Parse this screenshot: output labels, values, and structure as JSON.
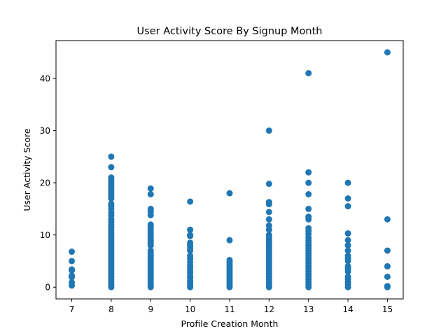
{
  "chart_data": {
    "type": "scatter",
    "title": "User Activity Score By Signup Month",
    "xlabel": "Profile Creation Month",
    "ylabel": "User Activity Score",
    "xlim": [
      6.6,
      15.4
    ],
    "ylim": [
      -2.25,
      47.25
    ],
    "xticks": [
      7,
      8,
      9,
      10,
      11,
      12,
      13,
      14,
      15
    ],
    "yticks": [
      0,
      10,
      20,
      30,
      40
    ],
    "grid": false,
    "marker_color": "#1f77b4",
    "series": [
      {
        "points": [
          [
            7,
            6.8
          ],
          [
            7,
            5.0
          ],
          [
            7,
            3.4
          ],
          [
            7,
            3.2
          ],
          [
            7,
            2.2
          ],
          [
            7,
            1.9
          ],
          [
            7,
            0.9
          ],
          [
            7,
            0.3
          ],
          [
            8,
            25.0
          ],
          [
            8,
            23.0
          ],
          [
            8,
            21.0
          ],
          [
            8,
            20.5
          ],
          [
            8,
            20.0
          ],
          [
            8,
            19.5
          ],
          [
            8,
            19.0
          ],
          [
            8,
            18.5
          ],
          [
            8,
            18.0
          ],
          [
            8,
            17.5
          ],
          [
            8,
            17.0
          ],
          [
            8,
            16.0
          ],
          [
            8,
            15.5
          ],
          [
            8,
            15.0
          ],
          [
            8,
            14.3
          ],
          [
            8,
            13.7
          ],
          [
            8,
            13.0
          ],
          [
            8,
            12.5
          ],
          [
            8,
            12.0
          ],
          [
            8,
            11.5
          ],
          [
            8,
            11.0
          ],
          [
            8,
            10.5
          ],
          [
            8,
            10.0
          ],
          [
            8,
            9.5
          ],
          [
            8,
            9.0
          ],
          [
            8,
            8.5
          ],
          [
            8,
            8.0
          ],
          [
            8,
            7.5
          ],
          [
            8,
            7.0
          ],
          [
            8,
            6.5
          ],
          [
            8,
            6.0
          ],
          [
            8,
            5.5
          ],
          [
            8,
            5.0
          ],
          [
            8,
            4.5
          ],
          [
            8,
            4.0
          ],
          [
            8,
            3.5
          ],
          [
            8,
            3.0
          ],
          [
            8,
            2.5
          ],
          [
            8,
            2.0
          ],
          [
            8,
            1.5
          ],
          [
            8,
            1.0
          ],
          [
            8,
            0.5
          ],
          [
            8,
            0.0
          ],
          [
            9,
            18.9
          ],
          [
            9,
            17.8
          ],
          [
            9,
            15.0
          ],
          [
            9,
            14.5
          ],
          [
            9,
            13.8
          ],
          [
            9,
            12.0
          ],
          [
            9,
            11.5
          ],
          [
            9,
            11.0
          ],
          [
            9,
            10.5
          ],
          [
            9,
            10.0
          ],
          [
            9,
            9.5
          ],
          [
            9,
            9.0
          ],
          [
            9,
            8.5
          ],
          [
            9,
            8.0
          ],
          [
            9,
            7.0
          ],
          [
            9,
            6.5
          ],
          [
            9,
            6.0
          ],
          [
            9,
            5.5
          ],
          [
            9,
            5.0
          ],
          [
            9,
            4.5
          ],
          [
            9,
            4.0
          ],
          [
            9,
            3.5
          ],
          [
            9,
            3.0
          ],
          [
            9,
            2.5
          ],
          [
            9,
            2.0
          ],
          [
            9,
            1.5
          ],
          [
            9,
            1.0
          ],
          [
            9,
            0.5
          ],
          [
            9,
            0.0
          ],
          [
            10,
            16.4
          ],
          [
            10,
            11.0
          ],
          [
            10,
            10.0
          ],
          [
            10,
            9.8
          ],
          [
            10,
            8.5
          ],
          [
            10,
            8.0
          ],
          [
            10,
            7.5
          ],
          [
            10,
            7.0
          ],
          [
            10,
            6.0
          ],
          [
            10,
            5.5
          ],
          [
            10,
            4.8
          ],
          [
            10,
            4.2
          ],
          [
            10,
            3.8
          ],
          [
            10,
            3.2
          ],
          [
            10,
            2.8
          ],
          [
            10,
            2.2
          ],
          [
            10,
            1.8
          ],
          [
            10,
            1.2
          ],
          [
            10,
            0.8
          ],
          [
            10,
            0.3
          ],
          [
            10,
            0.0
          ],
          [
            11,
            18.0
          ],
          [
            11,
            9.0
          ],
          [
            11,
            5.2
          ],
          [
            11,
            4.8
          ],
          [
            11,
            4.4
          ],
          [
            11,
            4.0
          ],
          [
            11,
            3.6
          ],
          [
            11,
            3.2
          ],
          [
            11,
            2.8
          ],
          [
            11,
            2.4
          ],
          [
            11,
            2.0
          ],
          [
            11,
            1.6
          ],
          [
            11,
            1.2
          ],
          [
            11,
            0.8
          ],
          [
            11,
            0.4
          ],
          [
            11,
            0.0
          ],
          [
            12,
            30.0
          ],
          [
            12,
            19.8
          ],
          [
            12,
            16.3
          ],
          [
            12,
            15.9
          ],
          [
            12,
            14.4
          ],
          [
            12,
            13.0
          ],
          [
            12,
            11.8
          ],
          [
            12,
            11.0
          ],
          [
            12,
            10.0
          ],
          [
            12,
            9.5
          ],
          [
            12,
            9.0
          ],
          [
            12,
            8.5
          ],
          [
            12,
            8.0
          ],
          [
            12,
            7.5
          ],
          [
            12,
            7.0
          ],
          [
            12,
            6.5
          ],
          [
            12,
            6.0
          ],
          [
            12,
            5.5
          ],
          [
            12,
            5.0
          ],
          [
            12,
            4.5
          ],
          [
            12,
            4.0
          ],
          [
            12,
            3.5
          ],
          [
            12,
            3.0
          ],
          [
            12,
            2.5
          ],
          [
            12,
            2.0
          ],
          [
            12,
            1.5
          ],
          [
            12,
            1.0
          ],
          [
            12,
            0.5
          ],
          [
            12,
            0.0
          ],
          [
            13,
            41.0
          ],
          [
            13,
            22.0
          ],
          [
            13,
            20.0
          ],
          [
            13,
            17.8
          ],
          [
            13,
            15.0
          ],
          [
            13,
            13.5
          ],
          [
            13,
            13.0
          ],
          [
            13,
            11.3
          ],
          [
            13,
            10.8
          ],
          [
            13,
            10.2
          ],
          [
            13,
            9.5
          ],
          [
            13,
            9.0
          ],
          [
            13,
            8.5
          ],
          [
            13,
            8.0
          ],
          [
            13,
            7.5
          ],
          [
            13,
            7.0
          ],
          [
            13,
            6.5
          ],
          [
            13,
            6.0
          ],
          [
            13,
            5.5
          ],
          [
            13,
            5.0
          ],
          [
            13,
            4.5
          ],
          [
            13,
            4.0
          ],
          [
            13,
            3.5
          ],
          [
            13,
            3.0
          ],
          [
            13,
            2.5
          ],
          [
            13,
            2.0
          ],
          [
            13,
            1.5
          ],
          [
            13,
            1.0
          ],
          [
            13,
            0.5
          ],
          [
            13,
            0.0
          ],
          [
            14,
            20.0
          ],
          [
            14,
            17.0
          ],
          [
            14,
            15.5
          ],
          [
            14,
            10.3
          ],
          [
            14,
            9.0
          ],
          [
            14,
            8.0
          ],
          [
            14,
            7.0
          ],
          [
            14,
            6.0
          ],
          [
            14,
            5.5
          ],
          [
            14,
            5.0
          ],
          [
            14,
            4.0
          ],
          [
            14,
            3.5
          ],
          [
            14,
            3.0
          ],
          [
            14,
            2.0
          ],
          [
            14,
            1.5
          ],
          [
            14,
            1.0
          ],
          [
            14,
            0.5
          ],
          [
            14,
            0.0
          ],
          [
            15,
            45.0
          ],
          [
            15,
            13.0
          ],
          [
            15,
            7.0
          ],
          [
            15,
            4.0
          ],
          [
            15,
            2.0
          ],
          [
            15,
            0.2
          ],
          [
            15,
            0.0
          ]
        ]
      }
    ]
  }
}
